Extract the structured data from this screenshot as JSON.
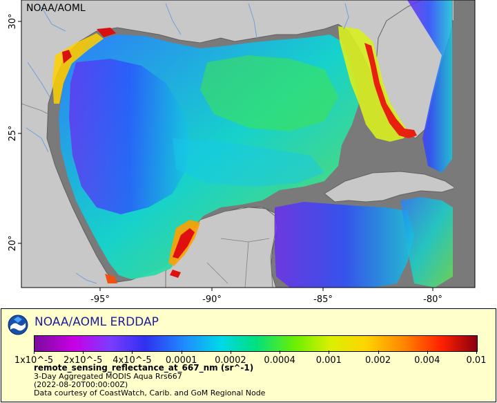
{
  "map": {
    "credit": "NOAA/AOML",
    "lon_labels": [
      "-95°",
      "-90°",
      "-85°",
      "-80°"
    ],
    "lat_labels": [
      "30°",
      "25°",
      "20°"
    ],
    "colors": {
      "land": "#c8c8c8",
      "no_data_water": "#7a7a7a",
      "coastline": "#606060",
      "rivers": "#6fa0d8"
    }
  },
  "legend": {
    "brand": "NOAA/AOML ERDDAP",
    "logo_icon": "noaa-logo-icon",
    "scale": "log",
    "tick_labels": [
      "1x10^-5",
      "2x10^-5",
      "4x10^-5",
      "0.0001",
      "0.0002",
      "0.0004",
      "0.001",
      "0.002",
      "0.004",
      "0.01"
    ],
    "variable": "remote_sensing_reflectance_at_667_nm (sr^-1)",
    "description": "3-Day Aggregated MODIS Aqua Rrs667",
    "time": "(2022-08-20T00:00:00Z)",
    "source": "Data courtesy of CoastWatch, Carib. and GoM Regional Node"
  }
}
